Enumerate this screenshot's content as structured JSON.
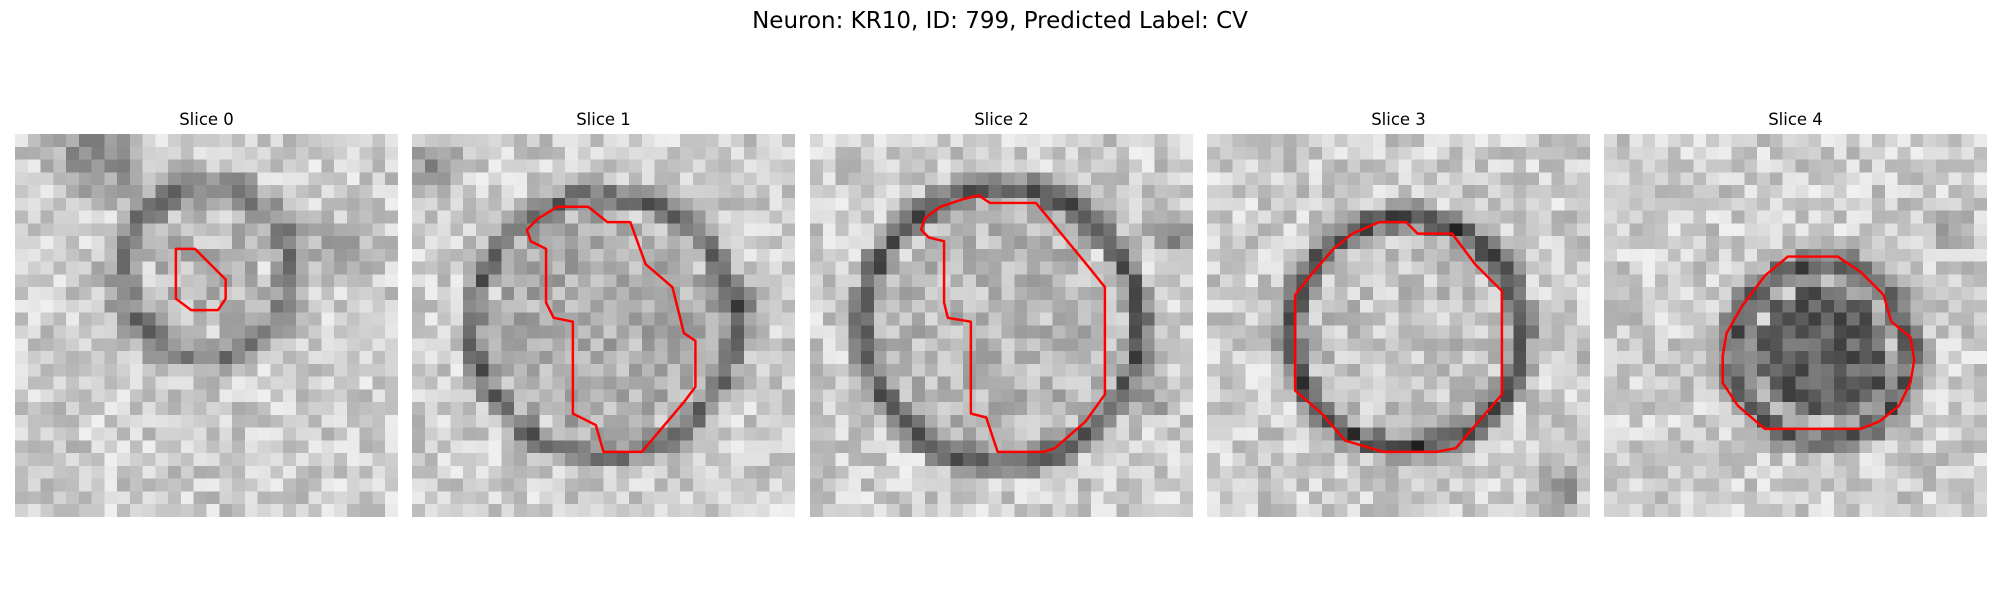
{
  "figure": {
    "title": "Neuron: KR10, ID: 799, Predicted Label: CV",
    "contour_color": "#ff0000"
  },
  "panels": [
    {
      "title": "Slice 0",
      "seed": 11,
      "contour": [
        [
          0.42,
          0.3
        ],
        [
          0.47,
          0.3
        ],
        [
          0.52,
          0.35
        ],
        [
          0.55,
          0.38
        ],
        [
          0.55,
          0.43
        ],
        [
          0.53,
          0.46
        ],
        [
          0.46,
          0.46
        ],
        [
          0.42,
          0.43
        ],
        [
          0.42,
          0.36
        ]
      ]
    },
    {
      "title": "Slice 1",
      "seed": 23,
      "contour": [
        [
          0.38,
          0.19
        ],
        [
          0.46,
          0.19
        ],
        [
          0.51,
          0.23
        ],
        [
          0.57,
          0.23
        ],
        [
          0.61,
          0.34
        ],
        [
          0.68,
          0.4
        ],
        [
          0.71,
          0.52
        ],
        [
          0.74,
          0.54
        ],
        [
          0.74,
          0.66
        ],
        [
          0.71,
          0.7
        ],
        [
          0.6,
          0.83
        ],
        [
          0.5,
          0.83
        ],
        [
          0.48,
          0.76
        ],
        [
          0.44,
          0.74
        ],
        [
          0.42,
          0.73
        ],
        [
          0.42,
          0.49
        ],
        [
          0.37,
          0.48
        ],
        [
          0.35,
          0.44
        ],
        [
          0.35,
          0.3
        ],
        [
          0.31,
          0.28
        ],
        [
          0.3,
          0.25
        ],
        [
          0.33,
          0.22
        ]
      ]
    },
    {
      "title": "Slice 2",
      "seed": 37,
      "contour": [
        [
          0.34,
          0.19
        ],
        [
          0.4,
          0.17
        ],
        [
          0.44,
          0.16
        ],
        [
          0.47,
          0.18
        ],
        [
          0.59,
          0.18
        ],
        [
          0.73,
          0.35
        ],
        [
          0.77,
          0.4
        ],
        [
          0.77,
          0.68
        ],
        [
          0.72,
          0.75
        ],
        [
          0.64,
          0.82
        ],
        [
          0.61,
          0.83
        ],
        [
          0.49,
          0.83
        ],
        [
          0.46,
          0.74
        ],
        [
          0.42,
          0.73
        ],
        [
          0.42,
          0.49
        ],
        [
          0.36,
          0.48
        ],
        [
          0.35,
          0.44
        ],
        [
          0.35,
          0.28
        ],
        [
          0.31,
          0.27
        ],
        [
          0.29,
          0.25
        ],
        [
          0.3,
          0.22
        ]
      ]
    },
    {
      "title": "Slice 3",
      "seed": 49,
      "contour": [
        [
          0.45,
          0.23
        ],
        [
          0.52,
          0.23
        ],
        [
          0.55,
          0.26
        ],
        [
          0.64,
          0.26
        ],
        [
          0.7,
          0.34
        ],
        [
          0.77,
          0.41
        ],
        [
          0.77,
          0.68
        ],
        [
          0.71,
          0.75
        ],
        [
          0.65,
          0.82
        ],
        [
          0.6,
          0.83
        ],
        [
          0.46,
          0.83
        ],
        [
          0.36,
          0.8
        ],
        [
          0.3,
          0.73
        ],
        [
          0.23,
          0.67
        ],
        [
          0.23,
          0.42
        ],
        [
          0.27,
          0.37
        ],
        [
          0.33,
          0.3
        ],
        [
          0.38,
          0.26
        ]
      ]
    },
    {
      "title": "Slice 4",
      "seed": 61,
      "contour": [
        [
          0.48,
          0.32
        ],
        [
          0.61,
          0.32
        ],
        [
          0.67,
          0.36
        ],
        [
          0.73,
          0.42
        ],
        [
          0.75,
          0.49
        ],
        [
          0.8,
          0.53
        ],
        [
          0.81,
          0.59
        ],
        [
          0.8,
          0.65
        ],
        [
          0.77,
          0.71
        ],
        [
          0.72,
          0.75
        ],
        [
          0.67,
          0.77
        ],
        [
          0.42,
          0.77
        ],
        [
          0.35,
          0.71
        ],
        [
          0.31,
          0.65
        ],
        [
          0.31,
          0.58
        ],
        [
          0.32,
          0.52
        ],
        [
          0.36,
          0.45
        ],
        [
          0.42,
          0.37
        ]
      ]
    }
  ]
}
